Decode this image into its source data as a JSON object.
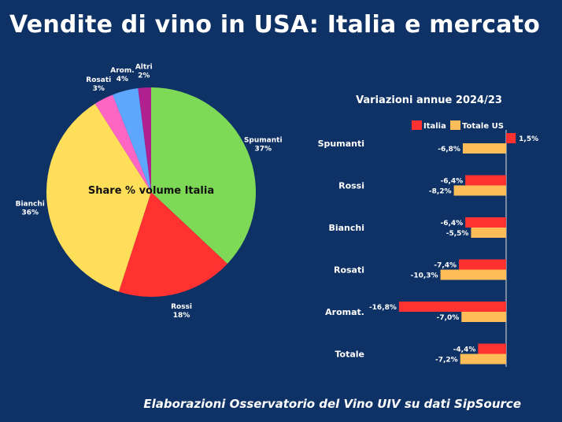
{
  "title": "Vendite di vino in USA: Italia e mercato",
  "footer": "Elaborazioni Osservatorio del Vino UIV su dati SipSource",
  "chart_data": [
    {
      "type": "pie",
      "title": "Share % volume Italia",
      "slices": [
        {
          "name": "Spumanti",
          "value": 37,
          "label": "37%",
          "color": "#7ed957"
        },
        {
          "name": "Rossi",
          "value": 18,
          "label": "18%",
          "color": "#ff3131"
        },
        {
          "name": "Bianchi",
          "value": 36,
          "label": "36%",
          "color": "#ffde59"
        },
        {
          "name": "Rosati",
          "value": 3,
          "label": "3%",
          "color": "#ff66c4"
        },
        {
          "name": "Arom.",
          "value": 4,
          "label": "4%",
          "color": "#5ea7ff"
        },
        {
          "name": "Altri",
          "value": 2,
          "label": "2%",
          "color": "#b0208f"
        }
      ]
    },
    {
      "type": "bar",
      "orientation": "horizontal",
      "title": "Variazioni annue 2024/23",
      "categories": [
        "Spumanti",
        "Rossi",
        "Bianchi",
        "Rosati",
        "Aromat.",
        "Totale"
      ],
      "series": [
        {
          "name": "Italia",
          "color": "#ff3131",
          "values": [
            1.5,
            -6.4,
            -6.4,
            -7.4,
            -16.8,
            -4.4
          ],
          "labels": [
            "1,5%",
            "-6,4%",
            "-6,4%",
            "-7,4%",
            "-16,8%",
            "-4,4%"
          ]
        },
        {
          "name": "Totale US",
          "color": "#ffbd59",
          "values": [
            -6.8,
            -8.2,
            -5.5,
            -10.3,
            -7.0,
            -7.2
          ],
          "labels": [
            "-6,8%",
            "-8,2%",
            "-5,5%",
            "-10,3%",
            "-7,0%",
            "-7,2%"
          ]
        }
      ]
    }
  ]
}
